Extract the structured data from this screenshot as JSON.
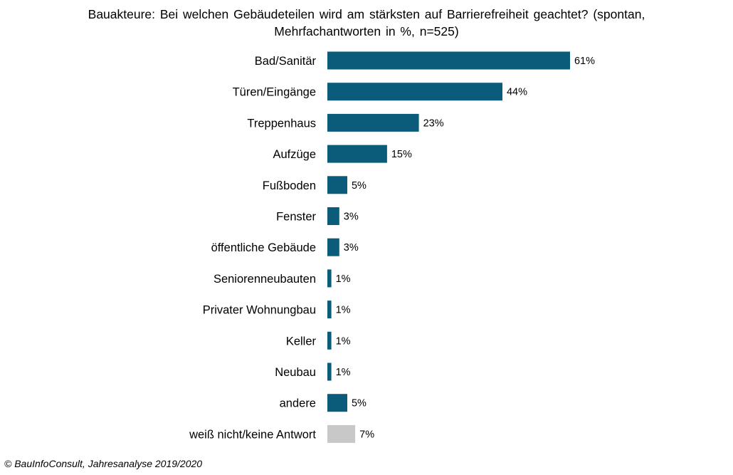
{
  "chart_data": {
    "type": "bar",
    "orientation": "horizontal",
    "title_lines": [
      "Bauakteure: Bei welchen Gebäudeteilen wird am stärksten auf Barrierefreiheit geachtet? (spontan,",
      "Mehrfachantworten in %, n=525)"
    ],
    "categories": [
      "Bad/Sanitär",
      "Türen/Eingänge",
      "Treppenhaus",
      "Aufzüge",
      "Fußboden",
      "Fenster",
      "öffentliche Gebäude",
      "Seniorenneubauten",
      "Privater Wohnungbau",
      "Keller",
      "Neubau",
      "andere",
      "weiß nicht/keine Antwort"
    ],
    "values": [
      61,
      44,
      23,
      15,
      5,
      3,
      3,
      1,
      1,
      1,
      1,
      5,
      7
    ],
    "value_labels": [
      "61%",
      "44%",
      "23%",
      "15%",
      "5%",
      "3%",
      "3%",
      "1%",
      "1%",
      "1%",
      "1%",
      "5%",
      "7%"
    ],
    "bar_colors": [
      "#0b5c7a",
      "#0b5c7a",
      "#0b5c7a",
      "#0b5c7a",
      "#0b5c7a",
      "#0b5c7a",
      "#0b5c7a",
      "#0b5c7a",
      "#0b5c7a",
      "#0b5c7a",
      "#0b5c7a",
      "#0b5c7a",
      "#c8c8c8"
    ],
    "xlim": [
      0,
      61
    ],
    "grid": false,
    "axes_visible": false
  },
  "footer": "© BauInfoConsult, Jahresanalyse 2019/2020"
}
